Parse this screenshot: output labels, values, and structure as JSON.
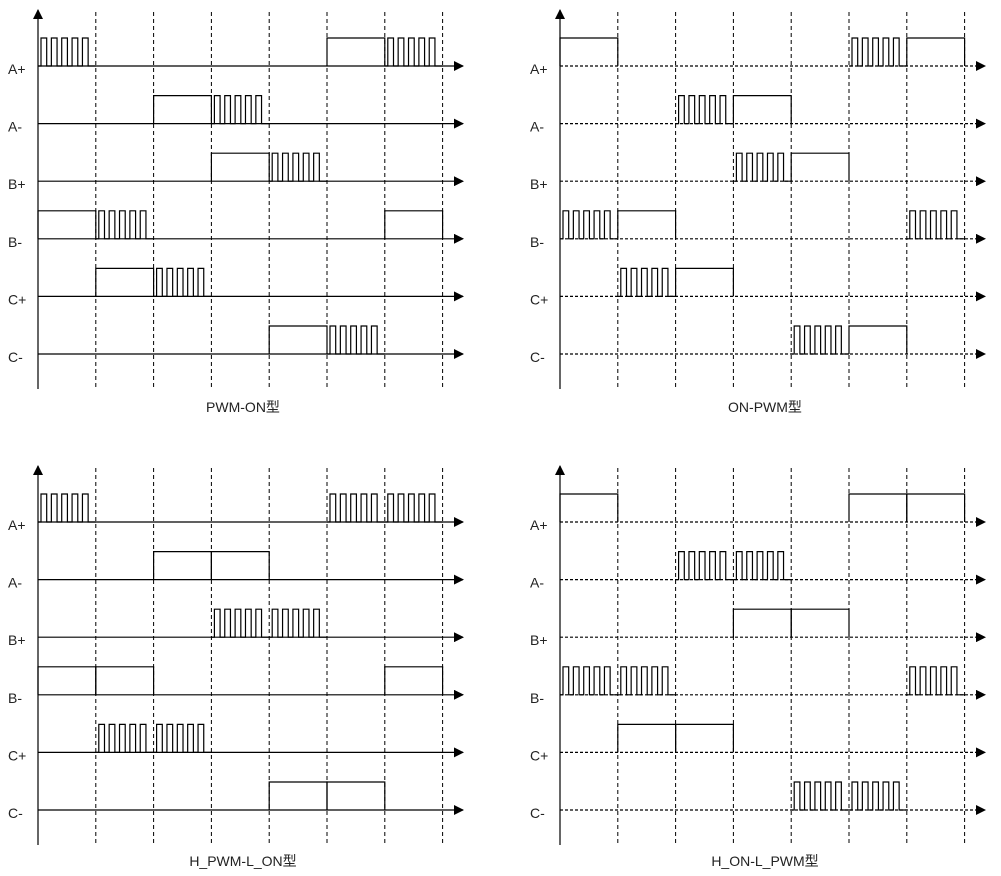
{
  "diagram": {
    "signals": [
      "A+",
      "A-",
      "B+",
      "B-",
      "C+",
      "C-"
    ],
    "panels": [
      {
        "title": "PWM-ON型",
        "rows": [
          [
            [
              "pwm",
              0,
              1
            ],
            [
              "on",
              5,
              6
            ],
            [
              "pwm",
              6,
              7
            ]
          ],
          [
            [
              "on",
              2,
              3
            ],
            [
              "pwm",
              3,
              4
            ]
          ],
          [
            [
              "on",
              3,
              4
            ],
            [
              "pwm",
              4,
              5
            ]
          ],
          [
            [
              "on",
              0,
              1
            ],
            [
              "pwm",
              1,
              2
            ],
            [
              "on",
              6,
              7
            ]
          ],
          [
            [
              "on",
              1,
              2
            ],
            [
              "pwm",
              2,
              3
            ]
          ],
          [
            [
              "on",
              4,
              5
            ],
            [
              "pwm",
              5,
              6
            ]
          ]
        ]
      },
      {
        "title": "ON-PWM型",
        "rows": [
          [
            [
              "on",
              0,
              1
            ],
            [
              "pwm",
              5,
              6
            ],
            [
              "on",
              6,
              7
            ]
          ],
          [
            [
              "pwm",
              2,
              3
            ],
            [
              "on",
              3,
              4
            ]
          ],
          [
            [
              "pwm",
              3,
              4
            ],
            [
              "on",
              4,
              5
            ]
          ],
          [
            [
              "pwm",
              0,
              1
            ],
            [
              "on",
              1,
              2
            ],
            [
              "pwm",
              6,
              7
            ]
          ],
          [
            [
              "pwm",
              1,
              2
            ],
            [
              "on",
              2,
              3
            ]
          ],
          [
            [
              "pwm",
              4,
              5
            ],
            [
              "on",
              5,
              6
            ]
          ]
        ]
      },
      {
        "title": "H_PWM-L_ON型",
        "rows": [
          [
            [
              "pwm",
              0,
              1
            ],
            [
              "pwm",
              5,
              6
            ],
            [
              "pwm",
              6,
              7
            ]
          ],
          [
            [
              "on",
              2,
              3
            ],
            [
              "on",
              3,
              4
            ]
          ],
          [
            [
              "pwm",
              3,
              4
            ],
            [
              "pwm",
              4,
              5
            ]
          ],
          [
            [
              "on",
              0,
              1
            ],
            [
              "on",
              1,
              2
            ],
            [
              "on",
              6,
              7
            ]
          ],
          [
            [
              "pwm",
              1,
              2
            ],
            [
              "pwm",
              2,
              3
            ]
          ],
          [
            [
              "on",
              4,
              5
            ],
            [
              "on",
              5,
              6
            ]
          ]
        ]
      },
      {
        "title": "H_ON-L_PWM型",
        "rows": [
          [
            [
              "on",
              0,
              1
            ],
            [
              "on",
              5,
              6
            ],
            [
              "on",
              6,
              7
            ]
          ],
          [
            [
              "pwm",
              2,
              3
            ],
            [
              "pwm",
              3,
              4
            ]
          ],
          [
            [
              "on",
              3,
              4
            ],
            [
              "on",
              4,
              5
            ]
          ],
          [
            [
              "pwm",
              0,
              1
            ],
            [
              "pwm",
              1,
              2
            ],
            [
              "pwm",
              6,
              7
            ]
          ],
          [
            [
              "on",
              1,
              2
            ],
            [
              "on",
              2,
              3
            ]
          ],
          [
            [
              "pwm",
              4,
              5
            ],
            [
              "pwm",
              5,
              6
            ]
          ]
        ]
      }
    ]
  }
}
